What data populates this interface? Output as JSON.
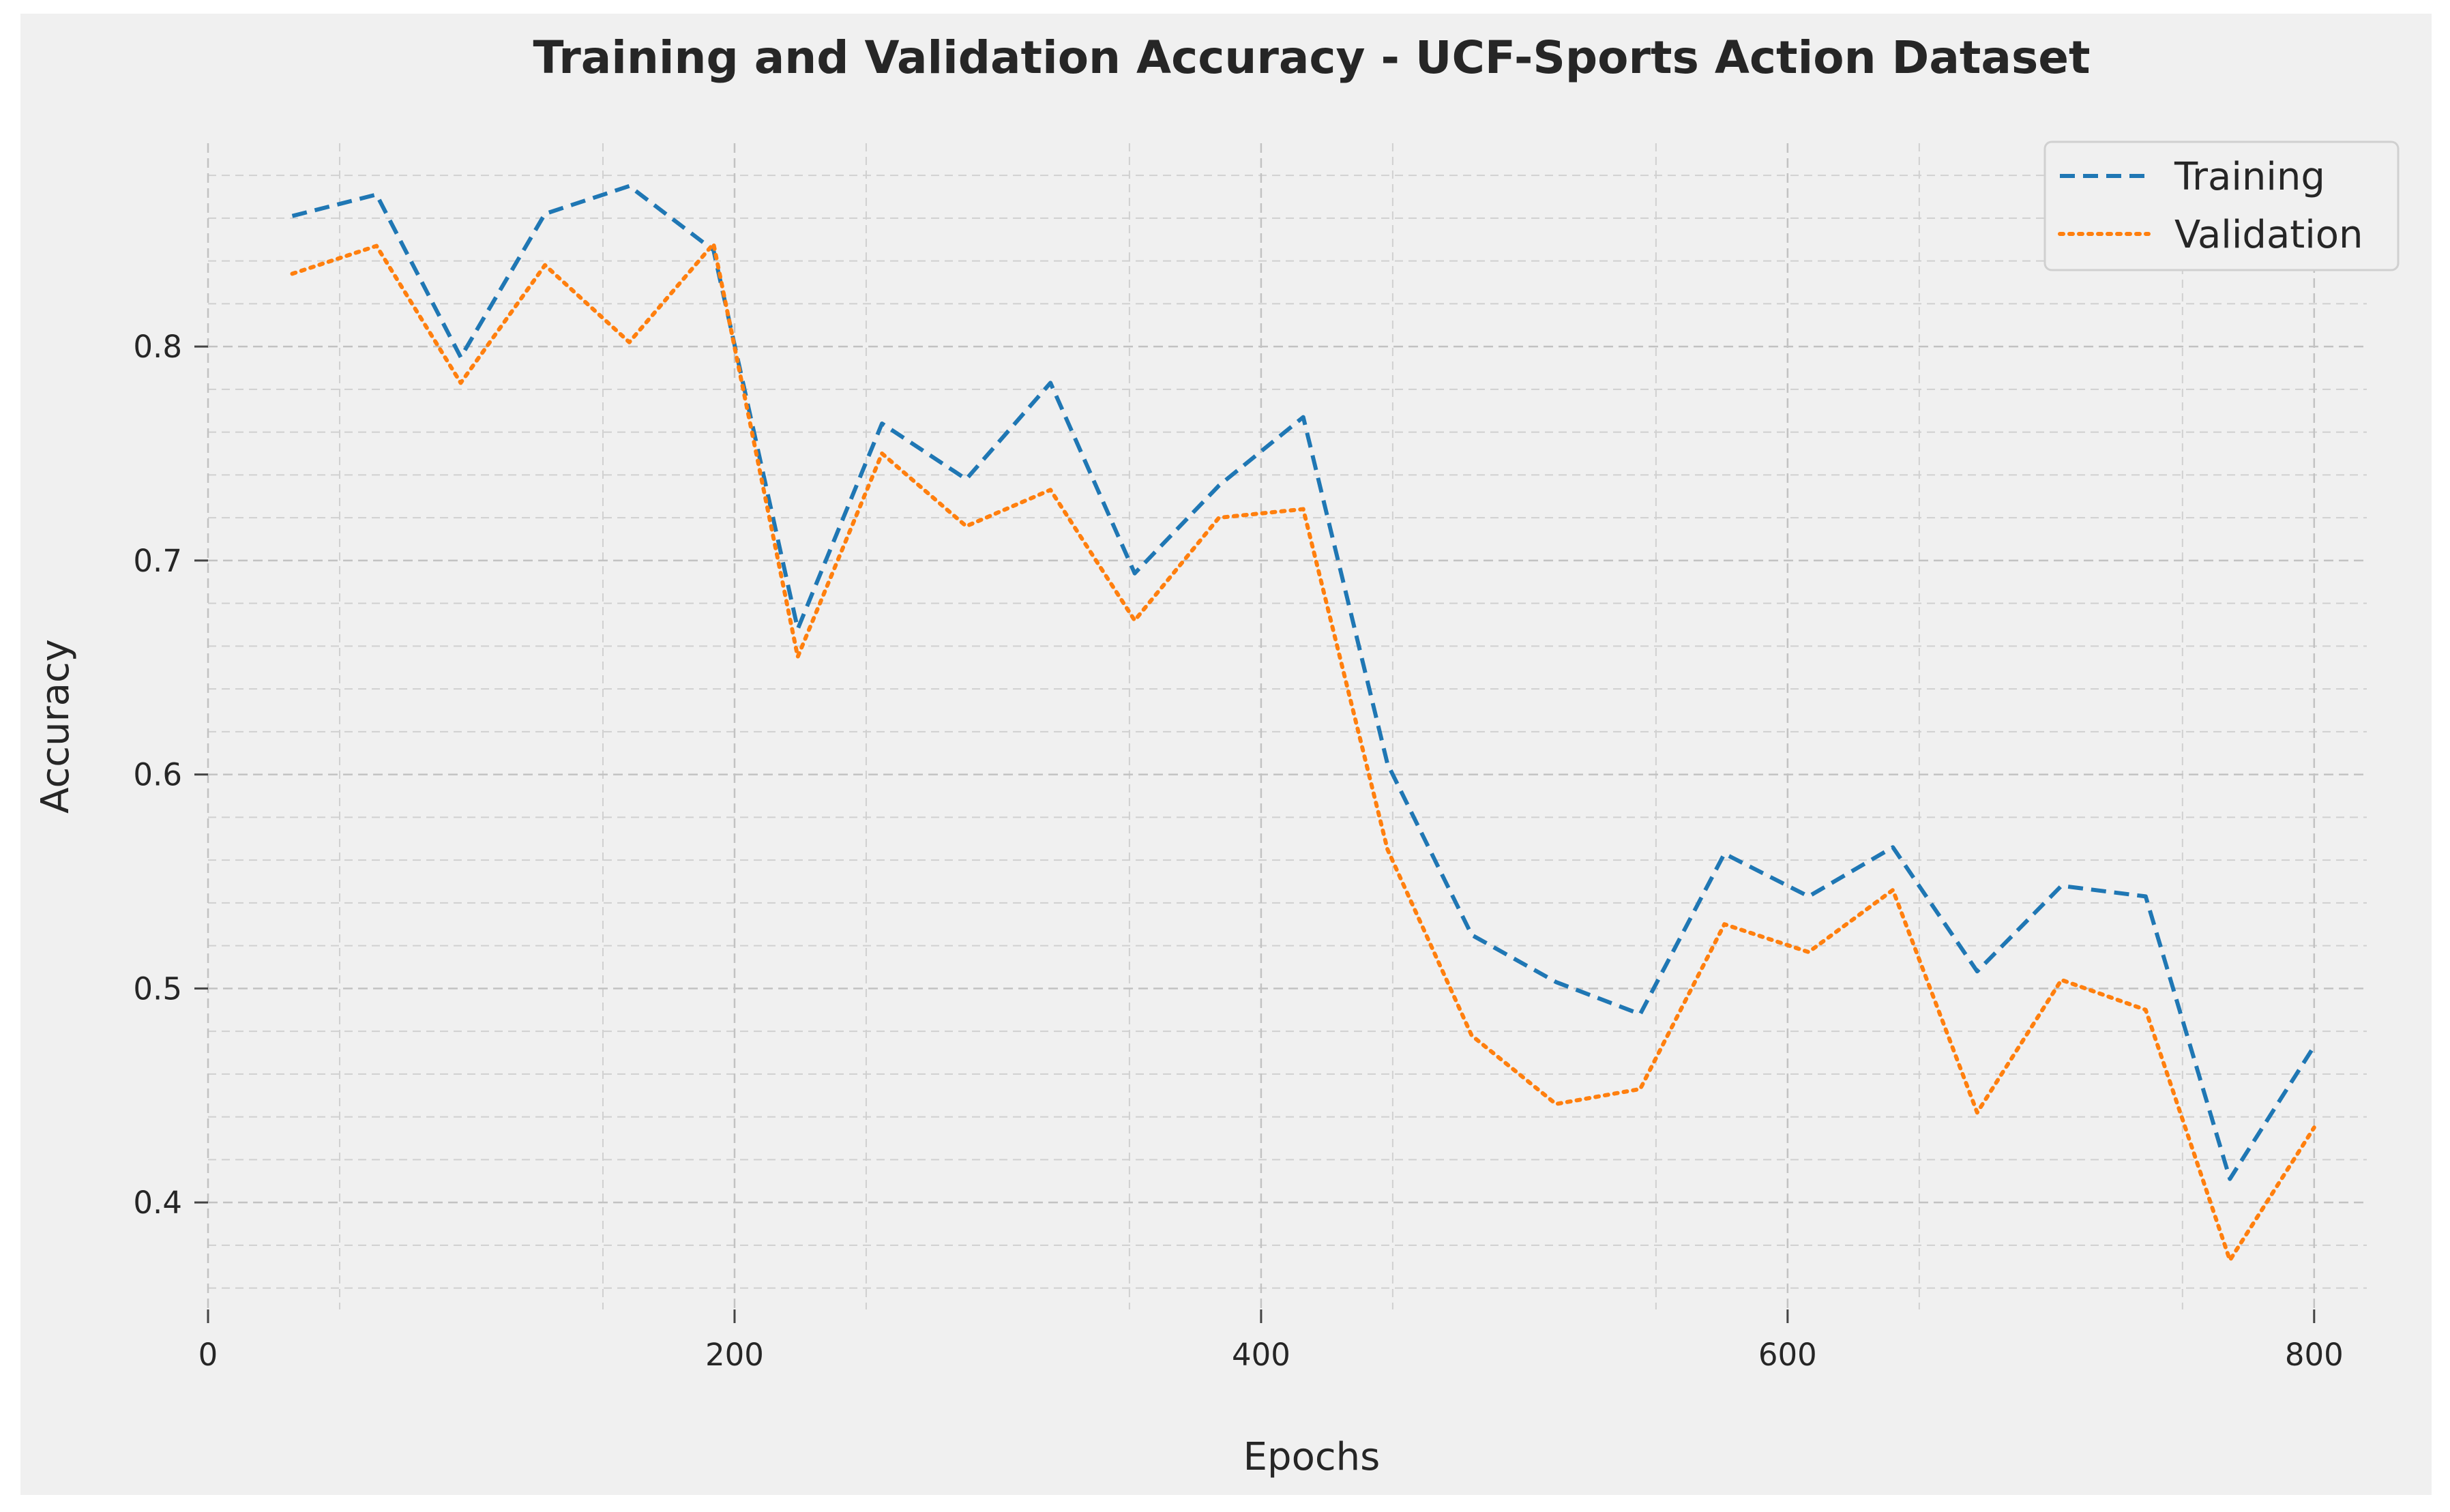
{
  "chart_data": {
    "type": "line",
    "title": "Training and Validation Accuracy - UCF-Sports Action Dataset",
    "xlabel": "Epochs",
    "ylabel": "Accuracy",
    "xlim": [
      0,
      820
    ],
    "ylim": [
      0.35,
      0.895
    ],
    "x_ticks": [
      0,
      200,
      400,
      600,
      800
    ],
    "y_ticks": [
      0.4,
      0.5,
      0.6,
      0.7,
      0.8
    ],
    "grid": true,
    "legend_position": "top-right",
    "x": [
      32,
      64,
      96,
      128,
      160,
      192,
      224,
      256,
      288,
      320,
      352,
      384,
      416,
      448,
      480,
      512,
      544,
      576,
      608,
      640,
      672,
      704,
      736,
      768,
      800
    ],
    "series": [
      {
        "name": "Training",
        "style": "dashed",
        "color": "#1f77b4",
        "values": [
          0.861,
          0.871,
          0.795,
          0.862,
          0.875,
          0.845,
          0.668,
          0.764,
          0.738,
          0.783,
          0.694,
          0.735,
          0.767,
          0.605,
          0.525,
          0.503,
          0.488,
          0.563,
          0.543,
          0.566,
          0.508,
          0.548,
          0.543,
          0.411,
          0.473
        ]
      },
      {
        "name": "Validation",
        "style": "dotted",
        "color": "#ff7f0e",
        "values": [
          0.834,
          0.847,
          0.783,
          0.838,
          0.802,
          0.848,
          0.655,
          0.75,
          0.716,
          0.733,
          0.672,
          0.72,
          0.724,
          0.565,
          0.478,
          0.446,
          0.453,
          0.53,
          0.517,
          0.546,
          0.442,
          0.504,
          0.49,
          0.373,
          0.435
        ]
      }
    ]
  }
}
